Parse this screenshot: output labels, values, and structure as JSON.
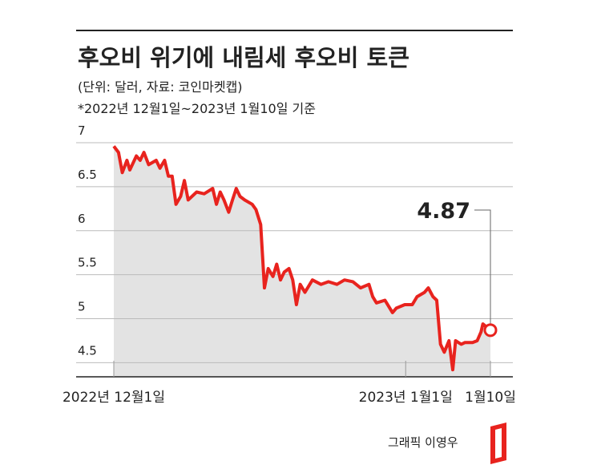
{
  "chart_data": {
    "type": "line",
    "title": "후오비 위기에 내림세 후오비 토큰",
    "subtitle": "(단위: 달러, 자료: 코인마켓캡)",
    "note": "*2022년 12월1일~2023년 1월10일 기준",
    "credit": "그래픽 이영우",
    "color": "#e8231e",
    "x": [
      0,
      0.5,
      0.9,
      1.4,
      1.7,
      2.4,
      2.8,
      3.2,
      3.7,
      4.5,
      4.9,
      5.4,
      5.8,
      6.2,
      6.6,
      7.1,
      7.5,
      7.9,
      8.8,
      9.6,
      10.5,
      10.9,
      11.3,
      11.7,
      12.2,
      12.6,
      13.0,
      13.4,
      13.9,
      14.7,
      15.1,
      15.6,
      16.0,
      16.4,
      16.9,
      17.3,
      17.7,
      18.1,
      18.6,
      19.0,
      19.4,
      19.8,
      20.3,
      21.1,
      22.0,
      22.8,
      23.7,
      24.5,
      25.4,
      26.2,
      27.1,
      27.5,
      27.9,
      28.8,
      29.6,
      30.0,
      30.9,
      31.7,
      32.2,
      33.0,
      33.4,
      33.9,
      34.3,
      34.7,
      35.1,
      35.6,
      36.0,
      36.3,
      36.9,
      37.3,
      38.1,
      38.6,
      39.0,
      39.2,
      40
    ],
    "values": [
      6.96,
      6.89,
      6.66,
      6.8,
      6.69,
      6.85,
      6.8,
      6.89,
      6.75,
      6.8,
      6.71,
      6.8,
      6.62,
      6.62,
      6.3,
      6.39,
      6.57,
      6.35,
      6.44,
      6.42,
      6.48,
      6.3,
      6.44,
      6.35,
      6.21,
      6.35,
      6.48,
      6.39,
      6.35,
      6.3,
      6.24,
      6.07,
      5.35,
      5.57,
      5.48,
      5.62,
      5.44,
      5.53,
      5.57,
      5.44,
      5.16,
      5.39,
      5.3,
      5.44,
      5.39,
      5.42,
      5.39,
      5.44,
      5.42,
      5.35,
      5.39,
      5.25,
      5.18,
      5.21,
      5.07,
      5.12,
      5.16,
      5.16,
      5.25,
      5.3,
      5.35,
      5.25,
      5.21,
      4.71,
      4.62,
      4.75,
      4.42,
      4.75,
      4.71,
      4.73,
      4.73,
      4.75,
      4.85,
      4.94,
      4.87
    ],
    "xlim": [
      0,
      40
    ],
    "xticks": [
      {
        "value": 0,
        "label": "2022년 12월1일"
      },
      {
        "value": 31,
        "label": "2023년 1월1일"
      },
      {
        "value": 40,
        "label": "1월10일"
      }
    ],
    "ylim": [
      4.34,
      7
    ],
    "yticks": [
      4.5,
      5,
      5.5,
      6,
      6.5,
      7
    ],
    "grid": true
  }
}
